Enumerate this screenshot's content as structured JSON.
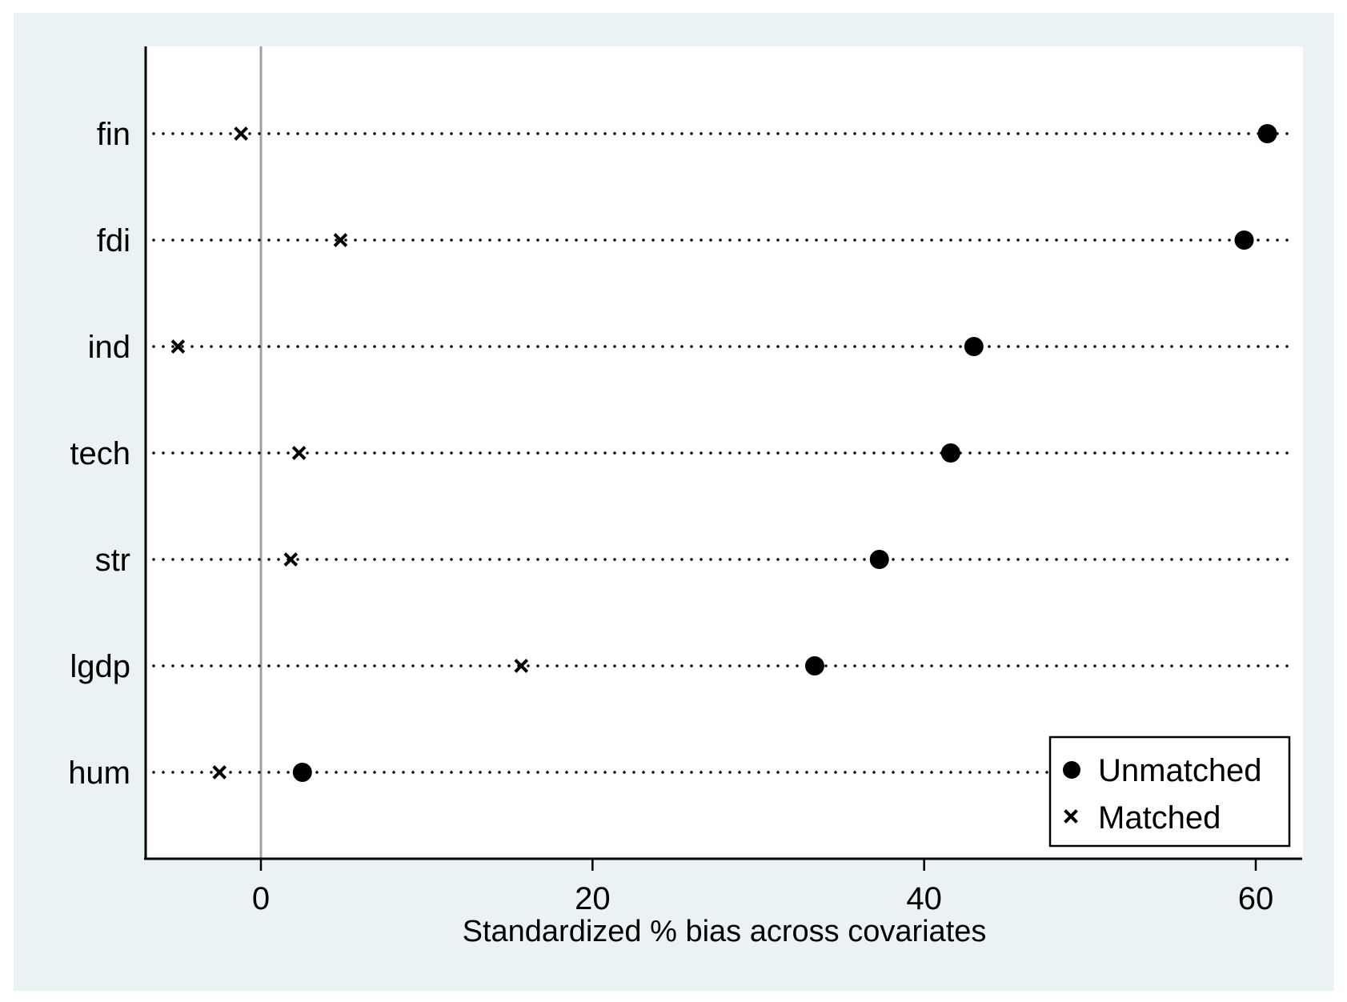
{
  "chart_data": {
    "type": "scatter",
    "title": "",
    "xlabel": "Standardized % bias across covariates",
    "ylabel": "",
    "xlim": [
      -7,
      62.5
    ],
    "xticks": [
      0,
      20,
      40,
      60
    ],
    "categories": [
      "fin",
      "fdi",
      "ind",
      "tech",
      "str",
      "lgdp",
      "hum"
    ],
    "series": [
      {
        "name": "Unmatched",
        "marker": "circle",
        "values": [
          60.7,
          59.3,
          43.0,
          41.6,
          37.3,
          33.4,
          2.5
        ]
      },
      {
        "name": "Matched",
        "marker": "x",
        "values": [
          -1.2,
          4.8,
          -5.0,
          2.3,
          1.8,
          15.7,
          -2.5
        ]
      }
    ],
    "reference_line": 0,
    "grid": false,
    "legend_position": "bottom-right"
  },
  "colors": {
    "outer_background": "#eaf2f3",
    "plot_background": "#ffffff",
    "marker": "#000000",
    "reference_line": "#a0a0a0"
  }
}
